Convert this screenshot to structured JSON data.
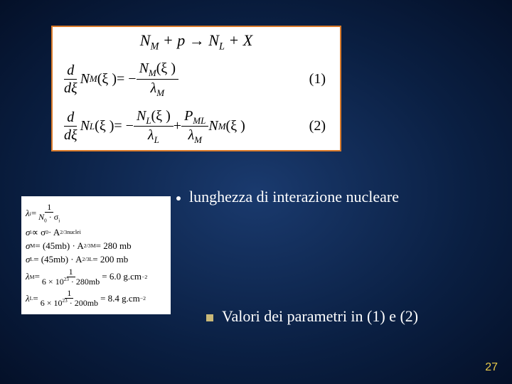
{
  "topEquation": {
    "lhs1": "N",
    "lhs1sub": "M",
    "plus": "+",
    "lhs2": "p",
    "arrow": "→",
    "rhs1": "N",
    "rhs1sub": "L",
    "rhs2": "X"
  },
  "eq1": {
    "d": "d",
    "dxi": "dξ",
    "N": "N",
    "NMsub": "M",
    "arg": "(ξ )",
    "eq": " = −",
    "rnum_N": "N",
    "rnum_sub": "M",
    "rnum_arg": "(ξ )",
    "rden": "λ",
    "rden_sub": "M",
    "num": "(1)"
  },
  "eq2": {
    "d": "d",
    "dxi": "dξ",
    "N": "N",
    "NLsub": "L",
    "arg": "(ξ )",
    "eq": " = −",
    "t1num_N": "N",
    "t1num_sub": "L",
    "t1num_arg": "(ξ )",
    "t1den": "λ",
    "t1den_sub": "L",
    "plus": " + ",
    "t2num_P": "P",
    "t2num_sub": "ML",
    "t2den": "λ",
    "t2den_sub": "M",
    "tail_N": "N",
    "tail_sub": "M",
    "tail_arg": "(ξ )",
    "num": "(2)"
  },
  "bullet1": "lunghezza di interazione nucleare",
  "bullet2": "Valori dei parametri in (1) e (2)",
  "params": {
    "l1_lhs": "λ",
    "l1_sub": "i",
    "l1_eq": " = ",
    "l1_num": "1",
    "l1_den_N0": "N",
    "l1_den_0": "0",
    "l1_den_dot": " · σ",
    "l1_den_i": "i",
    "l2_lhs": "σ",
    "l2_sub": "i",
    "l2_prop": " ∝ σ",
    "l2_0": "0",
    "l2_dot": " · A",
    "l2_exp": "2/3",
    "l2_foot": "nuclei",
    "l3_lhs": "σ",
    "l3_M": "M",
    "l3_eq": " = (45mb) · A",
    "l3_Msub": "M",
    "l3_exp": "2/3",
    "l3_val": " = 280 mb",
    "l4_lhs": "σ",
    "l4_L": "L",
    "l4_eq": " = (45mb) · A",
    "l4_Lsub": "L",
    "l4_exp": "2/3",
    "l4_val": " = 200 mb",
    "l5_lhs": "λ",
    "l5_M": "M",
    "l5_eq": " = ",
    "l5_num": "1",
    "l5_den": "6 × 10",
    "l5_den_exp": "23",
    "l5_den_tail": " · 280mb",
    "l5_val": " = 6.0 g.cm",
    "l5_vexp": "−2",
    "l6_lhs": "λ",
    "l6_L": "L",
    "l6_eq": " = ",
    "l6_num": "1",
    "l6_den": "6 × 10",
    "l6_den_exp": "23",
    "l6_den_tail": " · 200mb",
    "l6_val": " = 8.4 g.cm",
    "l6_vexp": "−2"
  },
  "pageNumber": "27",
  "colors": {
    "boxBorder": "#d97a2a",
    "boxBg": "#ffffff",
    "bodyText": "#ffffff",
    "pageNum": "#e8c94a",
    "sqBullet": "#c9b878"
  }
}
